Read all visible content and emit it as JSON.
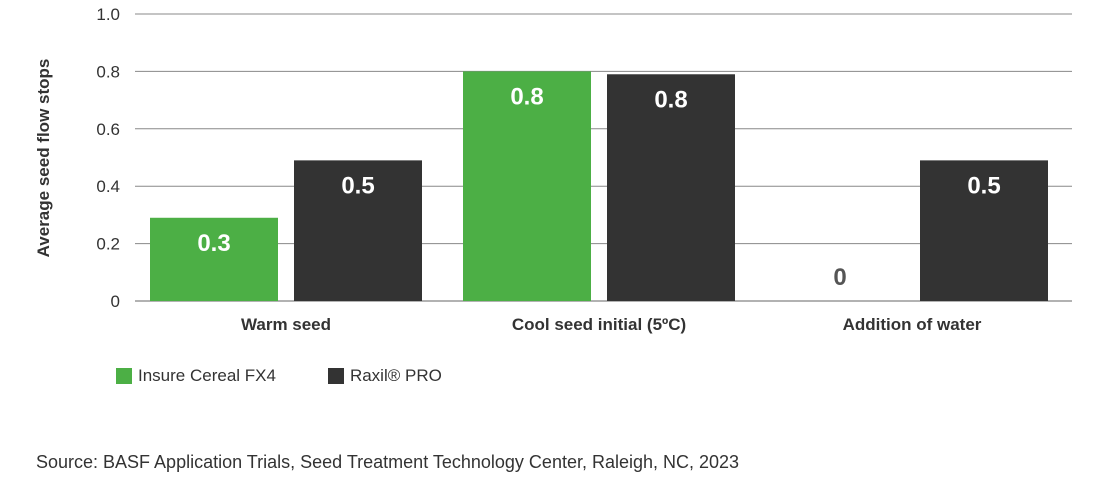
{
  "chart_data": {
    "type": "bar",
    "ylabel": "Average seed flow stops",
    "ylim": [
      0,
      1.0
    ],
    "yticks": [
      "0",
      "0.2",
      "0.4",
      "0.6",
      "0.8",
      "1.0"
    ],
    "categories": [
      "Warm seed",
      "Cool seed initial (5ºC)",
      "Addition of water"
    ],
    "series": [
      {
        "name": "Insure Cereal FX4",
        "color": "#4caf45",
        "values": [
          0.29,
          0.8,
          0
        ],
        "labels": [
          "0.3",
          "0.8",
          "0"
        ]
      },
      {
        "name": "Raxil® PRO",
        "color": "#333333",
        "values": [
          0.49,
          0.79,
          0.49
        ],
        "labels": [
          "0.5",
          "0.8",
          "0.5"
        ]
      }
    ],
    "grid": true,
    "legend_position": "bottom-left"
  },
  "source": "Source: BASF Application Trials, Seed Treatment Technology Center, Raleigh, NC, 2023"
}
